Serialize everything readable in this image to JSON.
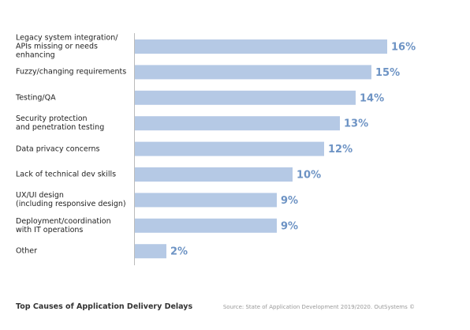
{
  "chart_data": {
    "type": "bar",
    "orientation": "horizontal",
    "title": "Top Causes of Application Delivery Delays",
    "source": "Source: State of Application Development 2019/2020. OutSystems ©",
    "categories": [
      "Legacy system integration/\nAPIs missing or needs enhancing",
      "Fuzzy/changing requirements",
      "Testing/QA",
      "Security protection\nand penetration testing",
      "Data privacy concerns",
      "Lack of technical dev skills",
      "UX/UI design\n(including responsive design)",
      "Deployment/coordination\nwith IT operations",
      "Other"
    ],
    "values": [
      16,
      15,
      14,
      13,
      12,
      10,
      9,
      9,
      2
    ],
    "value_labels": [
      "16%",
      "15%",
      "14%",
      "13%",
      "12%",
      "10%",
      "9%",
      "9%",
      "2%"
    ],
    "color": "#b5c9e5",
    "label_color": "#6d93c4"
  }
}
